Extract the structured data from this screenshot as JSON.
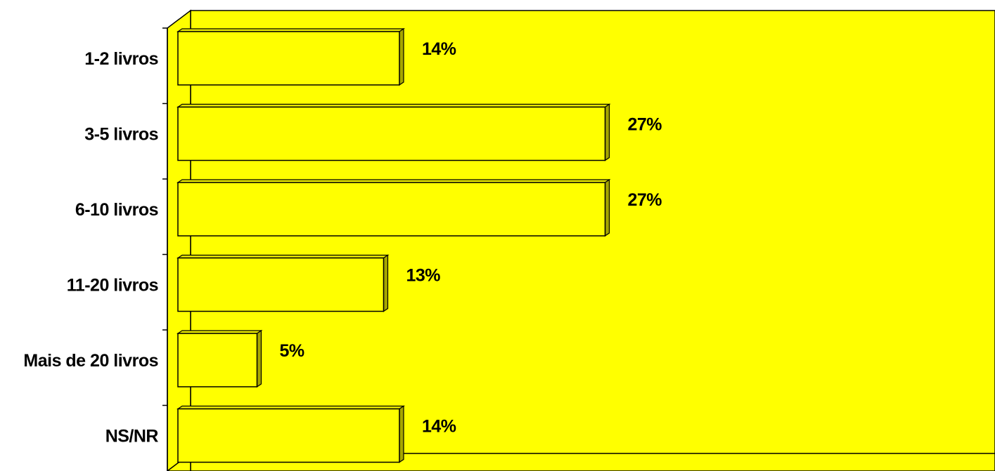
{
  "chart_data": {
    "type": "bar",
    "orientation": "horizontal",
    "style": "3d",
    "categories": [
      "1-2 livros",
      "3-5 livros",
      "6-10 livros",
      "11-20 livros",
      "Mais de 20 livros",
      "NS/NR"
    ],
    "values": [
      14,
      27,
      27,
      13,
      5,
      14
    ],
    "data_labels": [
      "14%",
      "27%",
      "27%",
      "13%",
      "5%",
      "14%"
    ],
    "unit": "%",
    "xlim": [
      0,
      50
    ],
    "grid": false,
    "legend": "none",
    "title": "",
    "xlabel": "",
    "ylabel": ""
  },
  "colors": {
    "plot_background": "#ffff00",
    "bar_front": "#ffff00",
    "bar_top": "#eded00",
    "bar_side": "#a6a600",
    "outline": "#000000",
    "page_background": "#ffffff"
  }
}
